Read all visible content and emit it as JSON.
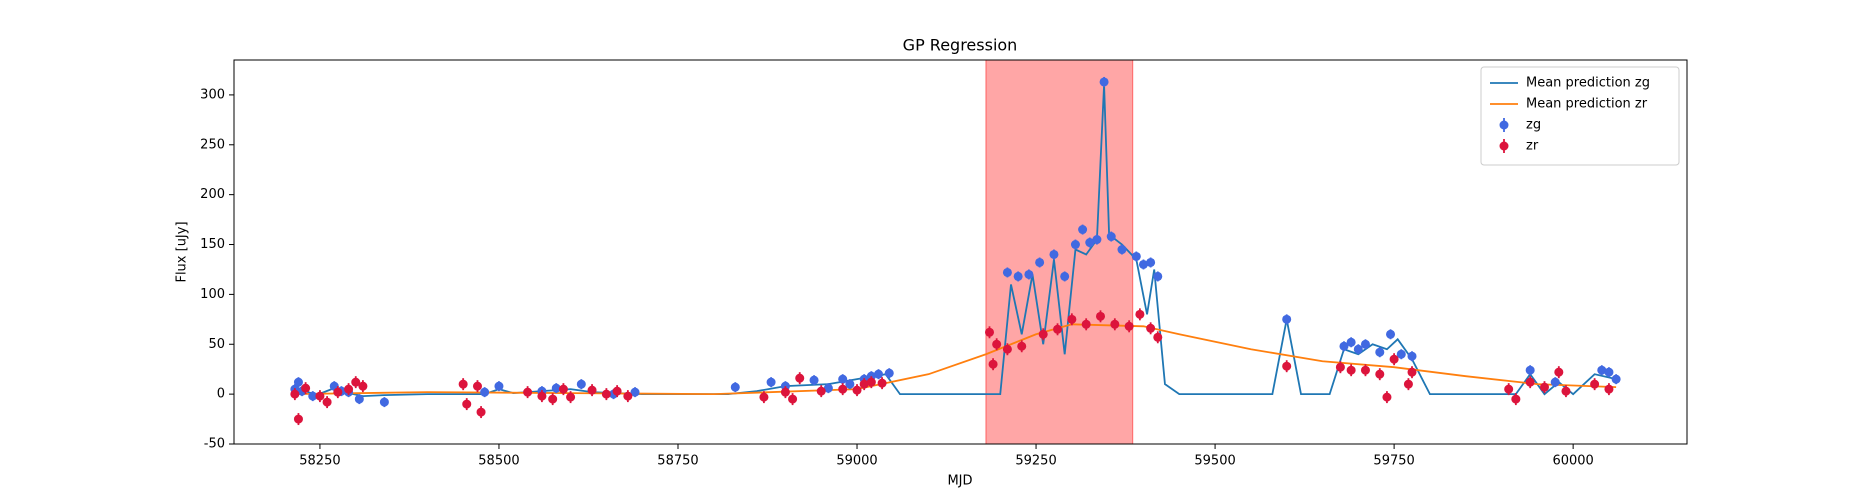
{
  "chart_data": {
    "type": "scatter",
    "title": "GP Regression",
    "x_label": "MJD",
    "y_label": "Flux [uJy]",
    "xlim": [
      58130,
      60159
    ],
    "ylim": [
      -50,
      335
    ],
    "xticks": [
      58250,
      58500,
      58750,
      59000,
      59250,
      59500,
      59750,
      60000
    ],
    "yticks": [
      -50,
      0,
      50,
      100,
      150,
      200,
      250,
      300
    ],
    "shaded_span": [
      59180,
      59385
    ],
    "span_color": "#ff0000",
    "span_alpha": 0.35,
    "legend": "upper right",
    "series": [
      {
        "name": "Mean prediction zg",
        "mark": "line",
        "color": "#1f77b4",
        "x": [
          58210,
          58230,
          58245,
          58270,
          58290,
          58310,
          58340,
          58400,
          58480,
          58500,
          58520,
          58560,
          58600,
          58630,
          58700,
          58820,
          58860,
          58900,
          58960,
          59000,
          59040,
          59060,
          59200,
          59215,
          59230,
          59245,
          59260,
          59275,
          59290,
          59305,
          59320,
          59335,
          59345,
          59352,
          59370,
          59390,
          59405,
          59415,
          59430,
          59450,
          59580,
          59600,
          59620,
          59660,
          59680,
          59700,
          59720,
          59740,
          59755,
          59775,
          59800,
          59920,
          59940,
          59960,
          59980,
          60000,
          60030,
          60060
        ],
        "values": [
          5,
          3,
          -1,
          6,
          1,
          -2,
          -1,
          0,
          0,
          5,
          1,
          3,
          5,
          2,
          0,
          0,
          3,
          8,
          10,
          15,
          20,
          0,
          0,
          110,
          60,
          120,
          50,
          135,
          40,
          145,
          140,
          155,
          310,
          160,
          150,
          135,
          80,
          125,
          10,
          0,
          0,
          75,
          0,
          0,
          45,
          40,
          50,
          45,
          55,
          35,
          0,
          0,
          20,
          0,
          12,
          0,
          20,
          15
        ]
      },
      {
        "name": "Mean prediction zr",
        "mark": "line",
        "color": "#ff7f0e",
        "x": [
          58210,
          58400,
          58600,
          58800,
          59000,
          59100,
          59180,
          59250,
          59300,
          59400,
          59450,
          59550,
          59650,
          59750,
          59850,
          59950,
          60060
        ],
        "values": [
          0,
          2,
          1,
          0,
          5,
          20,
          40,
          60,
          70,
          68,
          60,
          45,
          33,
          27,
          18,
          10,
          7
        ]
      },
      {
        "name": "zg",
        "mark": "errorbar",
        "color": "#4169e1",
        "error": 5,
        "x": [
          58215,
          58220,
          58225,
          58240,
          58270,
          58280,
          58290,
          58305,
          58340,
          58480,
          58500,
          58560,
          58580,
          58615,
          58660,
          58690,
          58830,
          58880,
          58900,
          58940,
          58960,
          58980,
          58990,
          59010,
          59020,
          59030,
          59045,
          59210,
          59225,
          59240,
          59255,
          59275,
          59290,
          59305,
          59315,
          59325,
          59335,
          59345,
          59355,
          59370,
          59390,
          59400,
          59410,
          59420,
          59600,
          59680,
          59690,
          59700,
          59710,
          59730,
          59745,
          59760,
          59775,
          59940,
          59975,
          60040,
          60050,
          60060
        ],
        "values": [
          5,
          12,
          3,
          -2,
          8,
          3,
          2,
          -5,
          -8,
          2,
          8,
          3,
          6,
          10,
          0,
          2,
          7,
          12,
          8,
          14,
          6,
          15,
          10,
          15,
          18,
          20,
          21,
          122,
          118,
          120,
          132,
          140,
          118,
          150,
          165,
          152,
          155,
          313,
          158,
          145,
          138,
          130,
          132,
          118,
          75,
          48,
          52,
          45,
          50,
          42,
          60,
          40,
          38,
          24,
          12,
          24,
          22,
          15
        ]
      },
      {
        "name": "zr",
        "mark": "errorbar",
        "color": "#dc143c",
        "error": 6,
        "x": [
          58215,
          58220,
          58230,
          58250,
          58260,
          58275,
          58290,
          58300,
          58310,
          58450,
          58455,
          58470,
          58475,
          58540,
          58560,
          58575,
          58590,
          58600,
          58630,
          58650,
          58665,
          58680,
          58870,
          58900,
          58910,
          58920,
          58950,
          58980,
          59000,
          59010,
          59020,
          59035,
          59185,
          59190,
          59195,
          59210,
          59230,
          59260,
          59280,
          59300,
          59320,
          59340,
          59360,
          59380,
          59395,
          59410,
          59420,
          59600,
          59675,
          59690,
          59710,
          59730,
          59740,
          59750,
          59770,
          59775,
          59910,
          59920,
          59940,
          59960,
          59980,
          59990,
          60030,
          60050
        ],
        "values": [
          0,
          -25,
          6,
          -2,
          -8,
          2,
          5,
          12,
          8,
          10,
          -10,
          8,
          -18,
          2,
          -2,
          -5,
          5,
          -3,
          4,
          0,
          3,
          -2,
          -3,
          2,
          -5,
          16,
          3,
          5,
          4,
          10,
          12,
          11,
          62,
          30,
          50,
          45,
          48,
          60,
          65,
          75,
          70,
          78,
          70,
          68,
          80,
          66,
          57,
          28,
          27,
          24,
          24,
          20,
          -3,
          35,
          10,
          22,
          5,
          -5,
          12,
          7,
          22,
          3,
          10,
          5
        ]
      }
    ]
  }
}
